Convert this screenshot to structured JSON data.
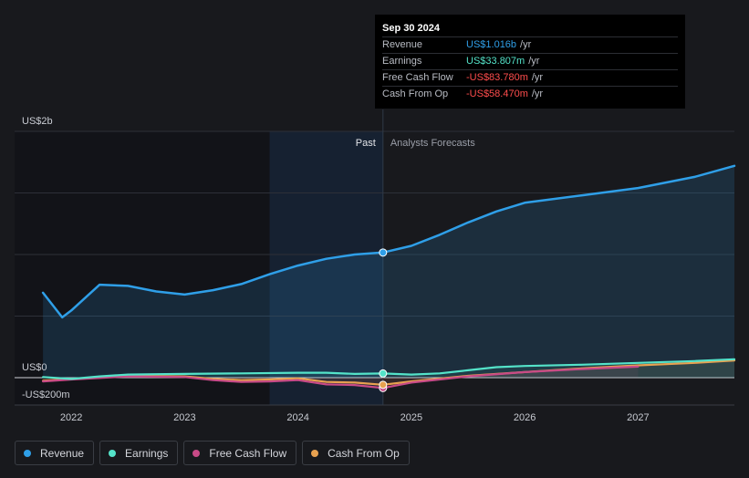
{
  "tooltip": {
    "date": "Sep 30 2024",
    "rows": [
      {
        "label": "Revenue",
        "value": "US$1.016b",
        "unit": "/yr",
        "color": "#2f9fe8"
      },
      {
        "label": "Earnings",
        "value": "US$33.807m",
        "unit": "/yr",
        "color": "#54e3c9"
      },
      {
        "label": "Free Cash Flow",
        "value": "-US$83.780m",
        "unit": "/yr",
        "color": "#ff4d4d"
      },
      {
        "label": "Cash From Op",
        "value": "-US$58.470m",
        "unit": "/yr",
        "color": "#ff4d4d"
      }
    ]
  },
  "chart_data": {
    "type": "line",
    "y_unit_labels": {
      "top": "US$2b",
      "zero": "US$0",
      "bottom": "-US$200m"
    },
    "ylim": [
      -200,
      2000
    ],
    "divider_labels": {
      "past": "Past",
      "forecast": "Analysts Forecasts"
    },
    "divider_x": 2024.75,
    "highlight_range": [
      2023.75,
      2024.75
    ],
    "x_ticks": [
      "2022",
      "2023",
      "2024",
      "2025",
      "2026",
      "2027"
    ],
    "xlim": [
      2021.5,
      2027.85
    ],
    "series": [
      {
        "name": "Revenue",
        "color": "#2f9fe8",
        "fill": true,
        "x": [
          2021.75,
          2021.92,
          2022.0,
          2022.25,
          2022.5,
          2022.75,
          2023.0,
          2023.25,
          2023.5,
          2023.75,
          2024.0,
          2024.25,
          2024.5,
          2024.75,
          2025.0,
          2025.25,
          2025.5,
          2025.75,
          2026.0,
          2026.5,
          2027.0,
          2027.5,
          2027.85
        ],
        "y": [
          690,
          490,
          545,
          755,
          745,
          700,
          675,
          710,
          760,
          840,
          910,
          965,
          1000,
          1016,
          1070,
          1160,
          1260,
          1350,
          1420,
          1480,
          1540,
          1630,
          1720
        ]
      },
      {
        "name": "Earnings",
        "color": "#54e3c9",
        "x": [
          2021.75,
          2022.0,
          2022.25,
          2022.5,
          2022.75,
          2023.0,
          2023.5,
          2024.0,
          2024.25,
          2024.5,
          2024.75,
          2025.0,
          2025.25,
          2025.5,
          2025.75,
          2026.0,
          2026.5,
          2027.0,
          2027.5,
          2027.85
        ],
        "y": [
          5,
          -10,
          10,
          25,
          28,
          30,
          35,
          40,
          40,
          30,
          34,
          25,
          35,
          60,
          85,
          95,
          105,
          120,
          135,
          150
        ]
      },
      {
        "name": "Free Cash Flow",
        "color": "#c84a87",
        "x": [
          2021.75,
          2022.0,
          2022.5,
          2023.0,
          2023.25,
          2023.5,
          2023.75,
          2024.0,
          2024.25,
          2024.5,
          2024.75,
          2025.0,
          2025.5,
          2026.0,
          2026.5,
          2027.0
        ],
        "y": [
          -30,
          -15,
          10,
          5,
          -20,
          -35,
          -30,
          -20,
          -55,
          -60,
          -84,
          -40,
          10,
          45,
          70,
          90
        ]
      },
      {
        "name": "Cash From Op",
        "color": "#e8a150",
        "x": [
          2021.75,
          2022.0,
          2022.5,
          2023.0,
          2023.25,
          2023.5,
          2023.75,
          2024.0,
          2024.25,
          2024.5,
          2024.75,
          2025.0,
          2025.5,
          2026.0,
          2026.5,
          2027.0,
          2027.5,
          2027.85
        ],
        "y": [
          -25,
          -10,
          15,
          10,
          -10,
          -20,
          -15,
          -5,
          -35,
          -40,
          -58,
          -30,
          15,
          45,
          75,
          100,
          120,
          140
        ]
      }
    ],
    "legend_position": "bottom-left"
  },
  "legend": [
    {
      "label": "Revenue",
      "color": "#2f9fe8"
    },
    {
      "label": "Earnings",
      "color": "#54e3c9"
    },
    {
      "label": "Free Cash Flow",
      "color": "#c84a87"
    },
    {
      "label": "Cash From Op",
      "color": "#e8a150"
    }
  ]
}
